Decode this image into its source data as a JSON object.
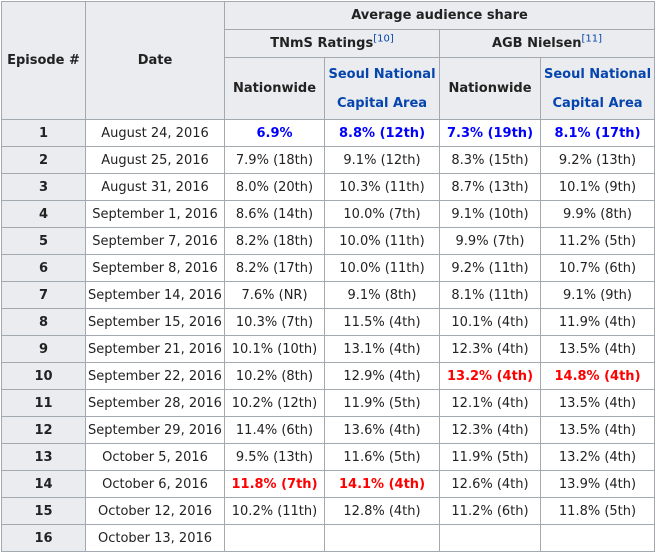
{
  "header": {
    "episode": "Episode #",
    "date": "Date",
    "average_share": "Average audience share",
    "tnms": "TNmS Ratings",
    "tnms_ref": "[10]",
    "agb": "AGB Nielsen",
    "agb_ref": "[11]",
    "nationwide": "Nationwide",
    "seoul": "Seoul National Capital Area"
  },
  "rows": [
    {
      "ep": "1",
      "date": "August 24, 2016",
      "tn": "6.9%",
      "ts": "8.8% (12th)",
      "an": "7.3% (19th)",
      "as": "8.1% (17th)"
    },
    {
      "ep": "2",
      "date": "August 25, 2016",
      "tn": "7.9% (18th)",
      "ts": "9.1% (12th)",
      "an": "8.3% (15th)",
      "as": "9.2% (13th)"
    },
    {
      "ep": "3",
      "date": "August 31, 2016",
      "tn": "8.0% (20th)",
      "ts": "10.3% (11th)",
      "an": "8.7% (13th)",
      "as": "10.1% (9th)"
    },
    {
      "ep": "4",
      "date": "September 1, 2016",
      "tn": "8.6% (14th)",
      "ts": "10.0% (7th)",
      "an": "9.1% (10th)",
      "as": "9.9% (8th)"
    },
    {
      "ep": "5",
      "date": "September 7, 2016",
      "tn": "8.2% (18th)",
      "ts": "10.0% (11th)",
      "an": "9.9% (7th)",
      "as": "11.2% (5th)"
    },
    {
      "ep": "6",
      "date": "September 8, 2016",
      "tn": "8.2% (17th)",
      "ts": "10.0% (11th)",
      "an": "9.2% (11th)",
      "as": "10.7% (6th)"
    },
    {
      "ep": "7",
      "date": "September 14, 2016",
      "tn": "7.6% (NR)",
      "ts": "9.1% (8th)",
      "an": "8.1% (11th)",
      "as": "9.1% (9th)"
    },
    {
      "ep": "8",
      "date": "September 15, 2016",
      "tn": "10.3% (7th)",
      "ts": "11.5% (4th)",
      "an": "10.1% (4th)",
      "as": "11.9% (4th)"
    },
    {
      "ep": "9",
      "date": "September 21, 2016",
      "tn": "10.1% (10th)",
      "ts": "13.1% (4th)",
      "an": "12.3% (4th)",
      "as": "13.5% (4th)"
    },
    {
      "ep": "10",
      "date": "September 22, 2016",
      "tn": "10.2% (8th)",
      "ts": "12.9% (4th)",
      "an": "13.2% (4th)",
      "as": "14.8% (4th)"
    },
    {
      "ep": "11",
      "date": "September 28, 2016",
      "tn": "10.2% (12th)",
      "ts": "11.9% (5th)",
      "an": "12.1% (4th)",
      "as": "13.5% (4th)"
    },
    {
      "ep": "12",
      "date": "September 29, 2016",
      "tn": "11.4% (6th)",
      "ts": "13.6% (4th)",
      "an": "12.3% (4th)",
      "as": "13.5% (4th)"
    },
    {
      "ep": "13",
      "date": "October 5, 2016",
      "tn": "9.5% (13th)",
      "ts": "11.6% (5th)",
      "an": "11.9% (5th)",
      "as": "13.2% (4th)"
    },
    {
      "ep": "14",
      "date": "October 6, 2016",
      "tn": "11.8% (7th)",
      "ts": "14.1% (4th)",
      "an": "12.6% (4th)",
      "as": "13.9% (4th)"
    },
    {
      "ep": "15",
      "date": "October 12, 2016",
      "tn": "10.2% (11th)",
      "ts": "12.8% (4th)",
      "an": "11.2% (6th)",
      "as": "11.8% (5th)"
    },
    {
      "ep": "16",
      "date": "October 13, 2016",
      "tn": "",
      "ts": "",
      "an": "",
      "as": ""
    }
  ],
  "colors": {
    "lowest": "#0000ff",
    "highest": "#ff0000",
    "header_bg": "#eaecf0",
    "border": "#a2a9b1"
  }
}
